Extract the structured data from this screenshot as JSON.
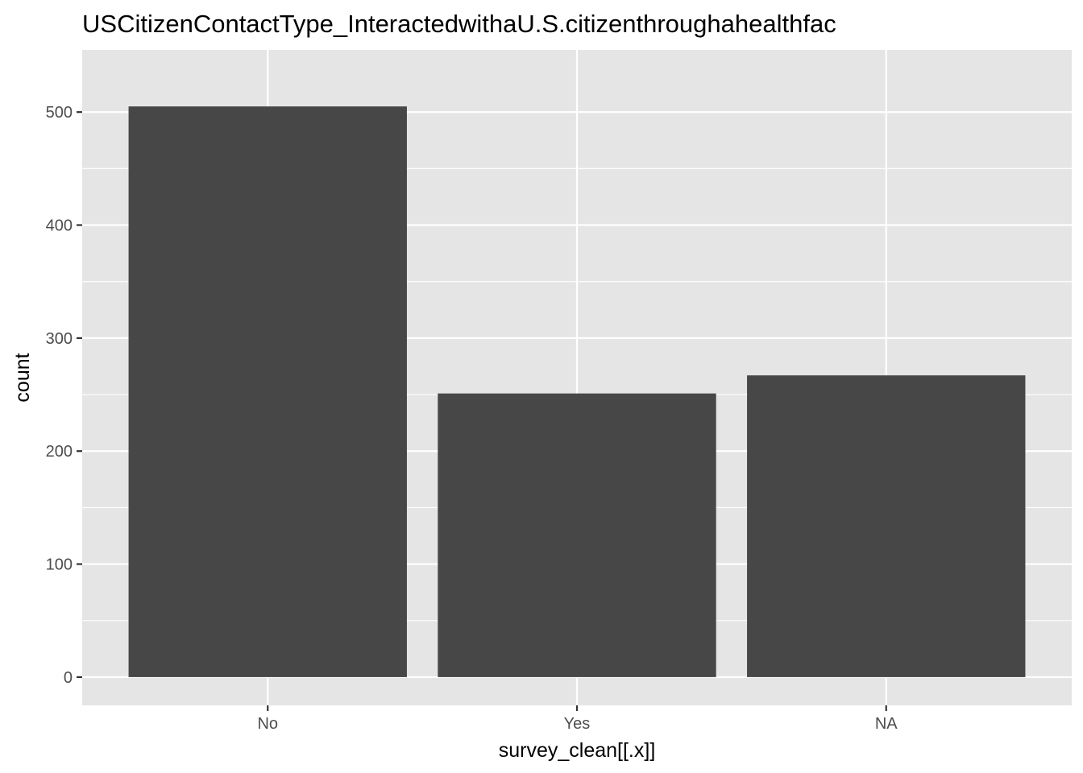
{
  "chart_data": {
    "type": "bar",
    "title": "USCitizenContactType_InteractedwithaU.S.citizenthroughahealthfac",
    "xlabel": "survey_clean[[.x]]",
    "ylabel": "count",
    "categories": [
      "No",
      "Yes",
      "NA"
    ],
    "values": [
      505,
      251,
      267
    ],
    "ylim": [
      -25,
      555
    ],
    "yticks": [
      0,
      100,
      200,
      300,
      400,
      500
    ],
    "grid": true,
    "legend": "none",
    "colors": {
      "bar": "#474747",
      "panel": "#e5e5e5",
      "grid": "#ffffff",
      "tick_label": "#4d4d4d",
      "text": "#000000"
    }
  }
}
